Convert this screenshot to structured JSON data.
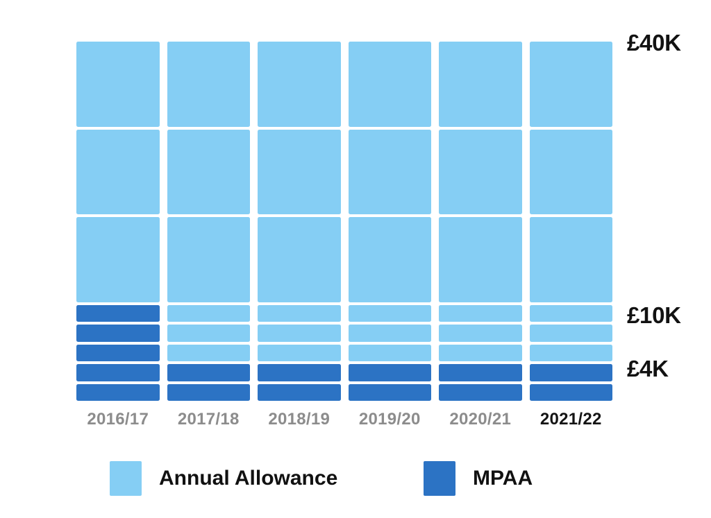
{
  "chart_data": {
    "type": "bar",
    "title": "",
    "categories": [
      "2016/17",
      "2017/18",
      "2018/19",
      "2019/20",
      "2020/21",
      "2021/22"
    ],
    "series": [
      {
        "name": "Annual Allowance",
        "color": "#85CEF4",
        "values_gbp": [
          40000,
          40000,
          40000,
          40000,
          40000,
          40000
        ]
      },
      {
        "name": "MPAA",
        "color": "#2C73C4",
        "values_gbp": [
          10000,
          4000,
          4000,
          4000,
          4000,
          4000
        ]
      }
    ],
    "ylim": [
      0,
      40000
    ],
    "y_ticks": [
      {
        "label": "£40K",
        "value": 40000
      },
      {
        "label": "£10K",
        "value": 10000
      },
      {
        "label": "£4K",
        "value": 4000
      }
    ],
    "block_structure": {
      "major_block_gbp": 10000,
      "minor_zone_top_gbp": 10000,
      "minor_block_gbp": 2000
    },
    "legend": {
      "position": "bottom",
      "items": [
        {
          "label": "Annual Allowance",
          "color": "#85CEF4"
        },
        {
          "label": "MPAA",
          "color": "#2C73C4"
        }
      ]
    },
    "highlighted_category": "2021/22",
    "grid": "white separators between value blocks",
    "colors": {
      "annual_allowance": "#85CEF4",
      "mpaa": "#2C73C4",
      "year_label_gray": "#8C8C8C",
      "year_label_current": "#141414",
      "axis_label": "#121212",
      "background": "#FFFFFF"
    }
  }
}
